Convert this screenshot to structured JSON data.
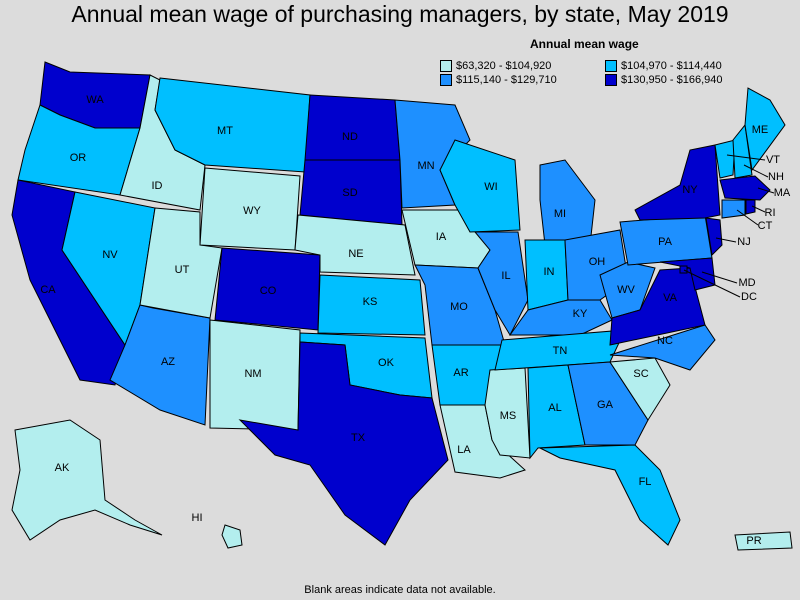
{
  "title": "Annual mean wage of purchasing managers, by state, May 2019",
  "legend": {
    "title": "Annual mean wage",
    "items": [
      {
        "label": "$63,320 - $104,920",
        "color": "#b3eeee"
      },
      {
        "label": "$104,970 - $114,440",
        "color": "#00bfff"
      },
      {
        "label": "$115,140 - $129,710",
        "color": "#1e90ff"
      },
      {
        "label": "$130,950 - $166,940",
        "color": "#0000cd"
      }
    ]
  },
  "footnote": "Blank areas indicate data not available.",
  "states": {
    "WA": "$130,950 - $166,940",
    "OR": "$104,970 - $114,440",
    "CA": "$130,950 - $166,940",
    "ID": "$63,320 - $104,920",
    "NV": "$104,970 - $114,440",
    "AZ": "$115,140 - $129,710",
    "MT": "$104,970 - $114,440",
    "WY": "$63,320 - $104,920",
    "UT": "$63,320 - $104,920",
    "CO": "$130,950 - $166,940",
    "NM": "$63,320 - $104,920",
    "ND": "$130,950 - $166,940",
    "SD": "$130,950 - $166,940",
    "NE": "$63,320 - $104,920",
    "KS": "$104,970 - $114,440",
    "OK": "$104,970 - $114,440",
    "TX": "$130,950 - $166,940",
    "MN": "$115,140 - $129,710",
    "IA": "$63,320 - $104,920",
    "MO": "$115,140 - $129,710",
    "AR": "$104,970 - $114,440",
    "LA": "$63,320 - $104,920",
    "WI": "$104,970 - $114,440",
    "IL": "$115,140 - $129,710",
    "MS": "$63,320 - $104,920",
    "MI": "$115,140 - $129,710",
    "IN": "$104,970 - $114,440",
    "KY": "$115,140 - $129,710",
    "TN": "$104,970 - $114,440",
    "AL": "$104,970 - $114,440",
    "OH": "$115,140 - $129,710",
    "WV": "$115,140 - $129,710",
    "GA": "$115,140 - $129,710",
    "FL": "$104,970 - $114,440",
    "SC": "$63,320 - $104,920",
    "NC": "$115,140 - $129,710",
    "VA": "$130,950 - $166,940",
    "PA": "$115,140 - $129,710",
    "NY": "$130,950 - $166,940",
    "ME": "$104,970 - $114,440",
    "VT": "$104,970 - $114,440",
    "NH": "$104,970 - $114,440",
    "MA": "$130,950 - $166,940",
    "CT": "$115,140 - $129,710",
    "RI": "$130,950 - $166,940",
    "NJ": "$130,950 - $166,940",
    "MD": "$130,950 - $166,940",
    "DC": "$130,950 - $166,940",
    "AK": "$63,320 - $104,920",
    "HI": "$63,320 - $104,920",
    "PR": "$63,320 - $104,920"
  },
  "labels": [
    "WA",
    "OR",
    "CA",
    "ID",
    "NV",
    "AZ",
    "MT",
    "WY",
    "UT",
    "CO",
    "NM",
    "ND",
    "SD",
    "NE",
    "KS",
    "OK",
    "TX",
    "MN",
    "IA",
    "MO",
    "AR",
    "LA",
    "WI",
    "IL",
    "MS",
    "MI",
    "IN",
    "KY",
    "TN",
    "AL",
    "OH",
    "WV",
    "GA",
    "FL",
    "SC",
    "NC",
    "VA",
    "PA",
    "NY",
    "ME",
    "VT",
    "NH",
    "MA",
    "CT",
    "RI",
    "NJ",
    "MD",
    "DC",
    "AK",
    "HI",
    "PR"
  ]
}
